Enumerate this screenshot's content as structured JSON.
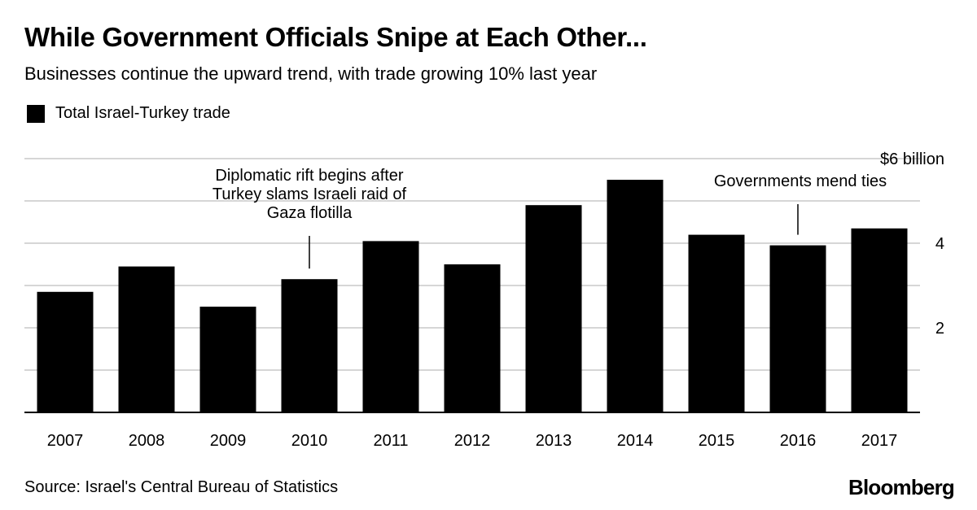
{
  "title": "While Government Officials Snipe at Each Other...",
  "subtitle": "Businesses continue the upward trend, with trade growing 10% last year",
  "legend": {
    "label": "Total Israel-Turkey trade",
    "color": "#000000"
  },
  "source": "Source: Israel's Central Bureau of Statistics",
  "brand": "Bloomberg",
  "chart_data": {
    "type": "bar",
    "title": "While Government Officials Snipe at Each Other...",
    "xlabel": "",
    "ylabel": "",
    "ylim": [
      0,
      6
    ],
    "y_ticks": [
      {
        "value": 2,
        "label": "2"
      },
      {
        "value": 4,
        "label": "4"
      },
      {
        "value": 6,
        "label": "$6 billion"
      }
    ],
    "gridlines": [
      1,
      2,
      3,
      4,
      5,
      6
    ],
    "categories": [
      "2007",
      "2008",
      "2009",
      "2010",
      "2011",
      "2012",
      "2013",
      "2014",
      "2015",
      "2016",
      "2017"
    ],
    "series": [
      {
        "name": "Total Israel-Turkey trade",
        "color": "#000000",
        "values": [
          2.85,
          3.45,
          2.5,
          3.15,
          4.05,
          3.5,
          4.9,
          5.5,
          4.2,
          3.95,
          4.35
        ]
      }
    ],
    "annotations": [
      {
        "category": "2010",
        "lines": [
          "Diplomatic rift begins after",
          "Turkey slams Israeli raid of",
          "Gaza flotilla"
        ]
      },
      {
        "category": "2016",
        "lines": [
          "Governments mend ties"
        ]
      }
    ]
  }
}
